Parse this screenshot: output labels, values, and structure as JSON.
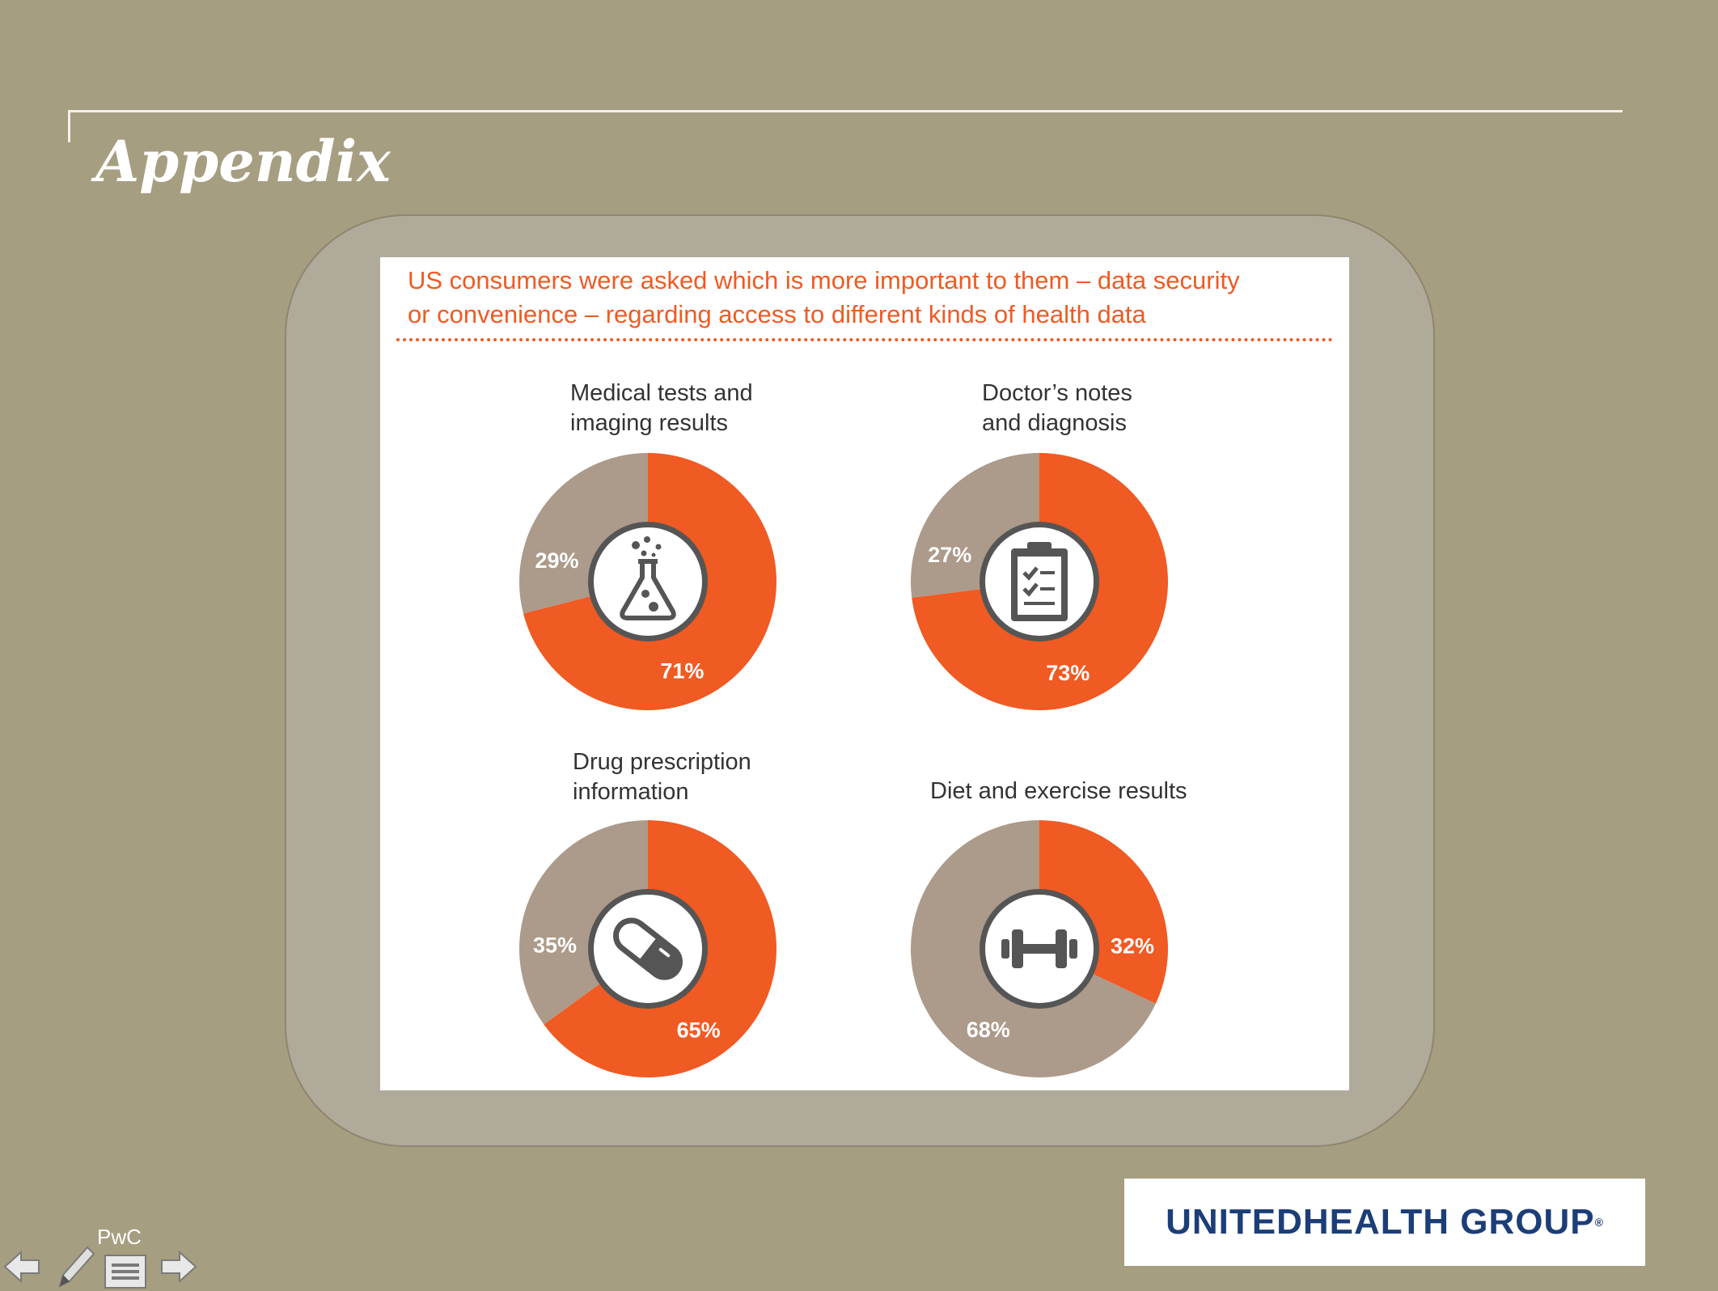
{
  "slide": {
    "title": "Appendix",
    "heading_line1": "US consumers were asked which is more important to them – data security",
    "heading_line2": "or convenience – regarding access to different kinds of health data"
  },
  "colors": {
    "primary": "#f05a23",
    "secondary": "#ac9a8a",
    "background": "#a69e80",
    "icon_stroke": "#555555"
  },
  "chart_data": [
    {
      "type": "pie",
      "title_line1": "Medical tests and",
      "title_line2": "imaging results",
      "icon": "flask-icon",
      "slices": [
        {
          "label": "71%",
          "value": 71,
          "color": "#f05a23"
        },
        {
          "label": "29%",
          "value": 29,
          "color": "#ac9a8a"
        }
      ]
    },
    {
      "type": "pie",
      "title_line1": "Doctor’s notes",
      "title_line2": "and diagnosis",
      "icon": "clipboard-icon",
      "slices": [
        {
          "label": "73%",
          "value": 73,
          "color": "#f05a23"
        },
        {
          "label": "27%",
          "value": 27,
          "color": "#ac9a8a"
        }
      ]
    },
    {
      "type": "pie",
      "title_line1": "Drug prescription",
      "title_line2": "information",
      "icon": "pill-icon",
      "slices": [
        {
          "label": "65%",
          "value": 65,
          "color": "#f05a23"
        },
        {
          "label": "35%",
          "value": 35,
          "color": "#ac9a8a"
        }
      ]
    },
    {
      "type": "pie",
      "title_line1": "Diet and exercise results",
      "title_line2": "",
      "icon": "dumbbell-icon",
      "slices": [
        {
          "label": "32%",
          "value": 32,
          "color": "#f05a23"
        },
        {
          "label": "68%",
          "value": 68,
          "color": "#ac9a8a"
        }
      ]
    }
  ],
  "footer": {
    "logo_text": "UNITEDHEALTH GROUP",
    "logo_mark": "®",
    "nav_label": "PwC",
    "nav_icons": [
      "arrow-left-icon",
      "pen-icon",
      "menu-icon",
      "arrow-right-icon"
    ]
  }
}
